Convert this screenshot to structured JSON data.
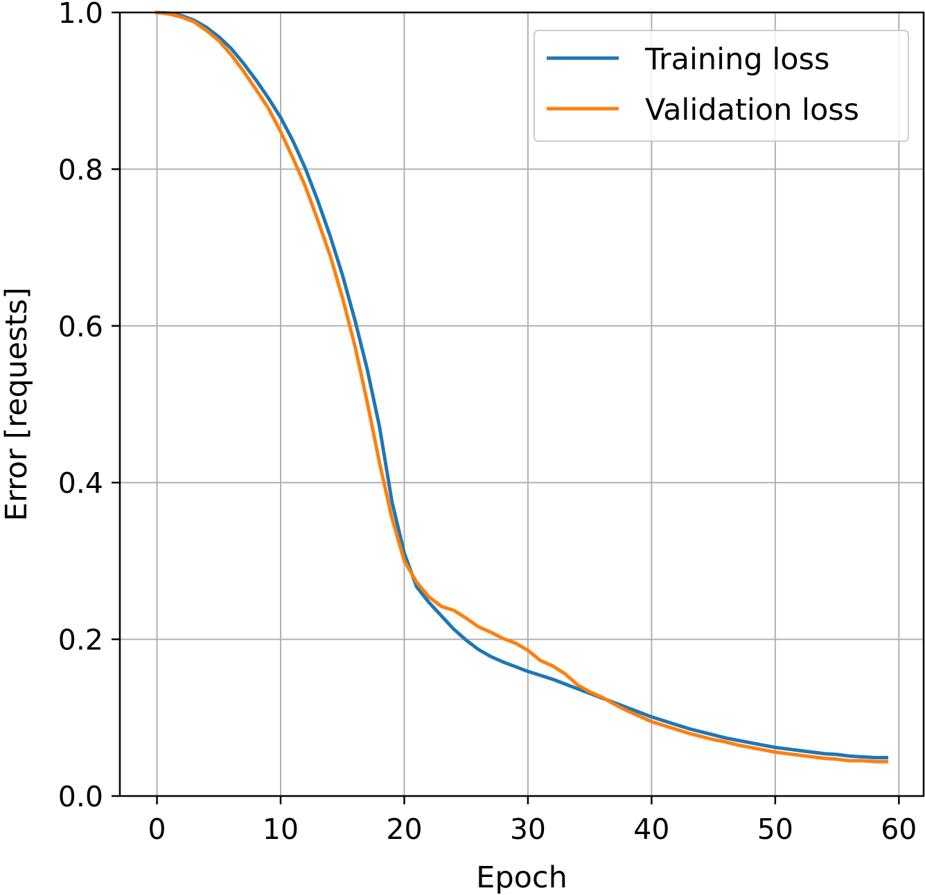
{
  "chart_data": {
    "type": "line",
    "xlabel": "Epoch",
    "ylabel": "Error [requests]",
    "xlim": [
      -3,
      62
    ],
    "ylim": [
      0.0,
      1.0
    ],
    "xticks": [
      0,
      10,
      20,
      30,
      40,
      50,
      60
    ],
    "xtick_labels": [
      "0",
      "10",
      "20",
      "30",
      "40",
      "50",
      "60"
    ],
    "yticks": [
      0.0,
      0.2,
      0.4,
      0.6,
      0.8,
      1.0
    ],
    "ytick_labels": [
      "0.0",
      "0.2",
      "0.4",
      "0.6",
      "0.8",
      "1.0"
    ],
    "grid": true,
    "legend_position": "top-right",
    "x": [
      0,
      1,
      2,
      3,
      4,
      5,
      6,
      7,
      8,
      9,
      10,
      11,
      12,
      13,
      14,
      15,
      16,
      17,
      18,
      19,
      20,
      21,
      22,
      23,
      24,
      25,
      26,
      27,
      28,
      29,
      30,
      31,
      32,
      33,
      34,
      35,
      36,
      37,
      38,
      39,
      40,
      41,
      42,
      43,
      44,
      45,
      46,
      47,
      48,
      49,
      50,
      51,
      52,
      53,
      54,
      55,
      56,
      57,
      58,
      59
    ],
    "series": [
      {
        "name": "Training loss",
        "color": "#1f77b4",
        "values": [
          1.0,
          0.999,
          0.996,
          0.99,
          0.981,
          0.969,
          0.954,
          0.935,
          0.914,
          0.891,
          0.866,
          0.836,
          0.801,
          0.76,
          0.715,
          0.665,
          0.608,
          0.545,
          0.471,
          0.376,
          0.31,
          0.267,
          0.247,
          0.23,
          0.213,
          0.199,
          0.187,
          0.178,
          0.171,
          0.165,
          0.159,
          0.154,
          0.149,
          0.143,
          0.137,
          0.131,
          0.125,
          0.119,
          0.113,
          0.107,
          0.101,
          0.096,
          0.091,
          0.086,
          0.082,
          0.078,
          0.074,
          0.071,
          0.068,
          0.065,
          0.062,
          0.06,
          0.058,
          0.056,
          0.054,
          0.053,
          0.051,
          0.05,
          0.049,
          0.049
        ]
      },
      {
        "name": "Validation loss",
        "color": "#ff7f0e",
        "values": [
          1.0,
          0.998,
          0.994,
          0.988,
          0.977,
          0.964,
          0.946,
          0.925,
          0.902,
          0.878,
          0.848,
          0.814,
          0.778,
          0.735,
          0.69,
          0.636,
          0.575,
          0.503,
          0.425,
          0.355,
          0.3,
          0.273,
          0.254,
          0.242,
          0.237,
          0.227,
          0.216,
          0.209,
          0.201,
          0.195,
          0.186,
          0.173,
          0.166,
          0.156,
          0.142,
          0.133,
          0.126,
          0.117,
          0.109,
          0.102,
          0.095,
          0.09,
          0.085,
          0.08,
          0.076,
          0.072,
          0.069,
          0.065,
          0.062,
          0.059,
          0.056,
          0.054,
          0.052,
          0.05,
          0.048,
          0.047,
          0.045,
          0.045,
          0.044,
          0.044
        ]
      }
    ]
  }
}
